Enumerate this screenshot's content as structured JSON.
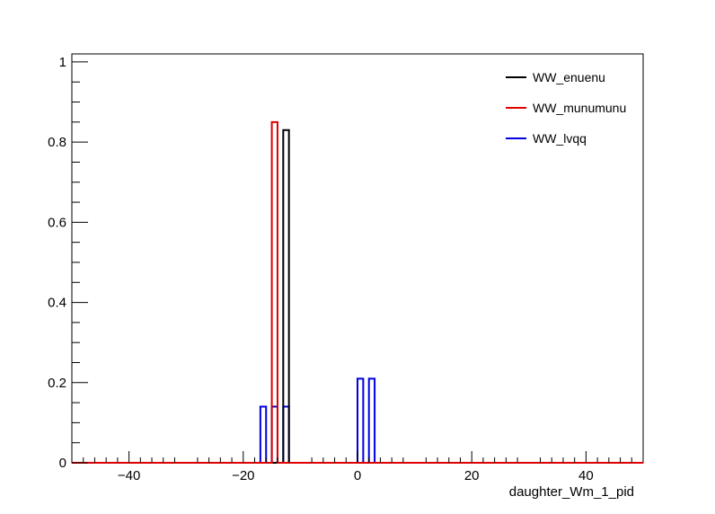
{
  "chart_data": {
    "type": "histogram",
    "title": "",
    "xlabel": "daughter_Wm_1_pid",
    "ylabel": "",
    "xlim": [
      -50,
      50
    ],
    "ylim": [
      0,
      1.02
    ],
    "x_ticks": [
      -40,
      -20,
      0,
      20,
      40
    ],
    "x_tick_labels": [
      "−40",
      "−20",
      "0",
      "20",
      "40"
    ],
    "y_ticks": [
      0,
      0.2,
      0.4,
      0.6,
      0.8,
      1
    ],
    "y_tick_labels": [
      "0",
      "0.2",
      "0.4",
      "0.6",
      "0.8",
      "1"
    ],
    "grid": false,
    "legend_position": "top-right",
    "bin_width": 1,
    "series": [
      {
        "name": "WW_enuenu",
        "color": "#000000",
        "bins": [
          {
            "x": -12,
            "y": 0.83
          }
        ]
      },
      {
        "name": "WW_munumunu",
        "color": "#e00000",
        "bins": [
          {
            "x": -14,
            "y": 0.85
          }
        ]
      },
      {
        "name": "WW_lvqq",
        "color": "#0000e0",
        "bins": [
          {
            "x": -16,
            "y": 0.14
          },
          {
            "x": -14,
            "y": 0.14
          },
          {
            "x": -12,
            "y": 0.14
          },
          {
            "x": 1,
            "y": 0.21
          },
          {
            "x": 3,
            "y": 0.21
          }
        ]
      }
    ]
  }
}
